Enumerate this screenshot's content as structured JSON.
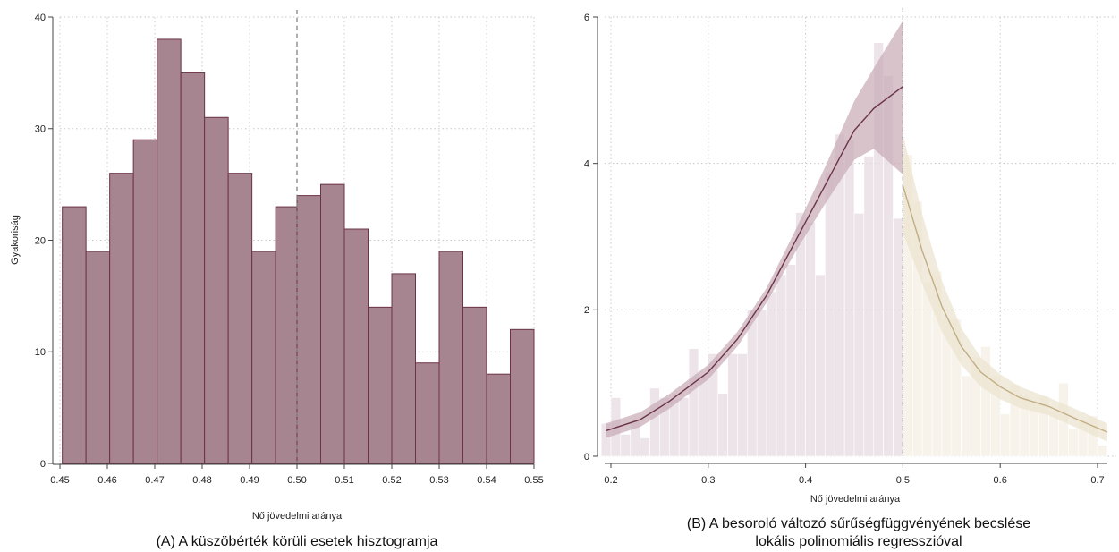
{
  "colors": {
    "left_bar_fill": "#a68490",
    "left_bar_stroke": "#6b3347",
    "left_line": "#6b3347",
    "left_band": "#c7a9b5",
    "left_bin_fill": "#e7dbe1",
    "right_line": "#c2ad85",
    "right_band": "#ebe2cf",
    "right_bin_fill": "#f4efe4",
    "grid": "#c8c8c8",
    "axis": "#444444",
    "cutoff_line": "#7a7a7a"
  },
  "panel_a": {
    "caption": "(A) A küszöbérték körüli esetek hisztogramja",
    "xlabel": "Nő jövedelmi aránya",
    "ylabel": "Gyakoriság",
    "xticks": [
      "0.45",
      "0.46",
      "0.47",
      "0.48",
      "0.49",
      "0.50",
      "0.51",
      "0.52",
      "0.53",
      "0.54",
      "0.55"
    ],
    "yticks": [
      "0",
      "10",
      "20",
      "30",
      "40"
    ]
  },
  "panel_b": {
    "caption_line1": "(B) A besoroló változó sűrűségfüggvényének becslése",
    "caption_line2": "lokális polinomiális regresszióval",
    "xlabel": "Nő jövedelmi aránya",
    "xticks": [
      "0.2",
      "0.3",
      "0.4",
      "0.5",
      "0.6",
      "0.7"
    ],
    "yticks": [
      "0",
      "2",
      "4",
      "6"
    ]
  },
  "chart_data": [
    {
      "type": "bar",
      "xlim": [
        0.45,
        0.55
      ],
      "ylim": [
        0,
        40
      ],
      "bin_width": 0.005,
      "cutoff": 0.5,
      "grid": true,
      "bins_start": [
        0.4505,
        0.4555,
        0.4605,
        0.4655,
        0.4705,
        0.4755,
        0.4805,
        0.4855,
        0.4905,
        0.4955,
        0.5,
        0.505,
        0.51,
        0.515,
        0.52,
        0.525,
        0.53,
        0.535,
        0.54,
        0.545
      ],
      "values": [
        23,
        19,
        26,
        29,
        38,
        35,
        31,
        26,
        19,
        23,
        24,
        25,
        21,
        14,
        17,
        9,
        19,
        14,
        8,
        12
      ]
    },
    {
      "type": "line",
      "xlim": [
        0.2,
        0.7
      ],
      "ylim": [
        0,
        6
      ],
      "cutoff": 0.5,
      "grid": true,
      "histogram_left": {
        "bin_width": 0.01,
        "bins_start": [
          0.19,
          0.2,
          0.21,
          0.22,
          0.23,
          0.24,
          0.25,
          0.26,
          0.27,
          0.28,
          0.29,
          0.3,
          0.31,
          0.32,
          0.33,
          0.34,
          0.35,
          0.36,
          0.37,
          0.38,
          0.39,
          0.4,
          0.41,
          0.42,
          0.43,
          0.44,
          0.45,
          0.46,
          0.47,
          0.48,
          0.49
        ],
        "values": [
          0.45,
          0.8,
          0.3,
          0.48,
          0.25,
          0.93,
          0.8,
          0.78,
          0.8,
          1.47,
          1.1,
          1.4,
          0.86,
          1.4,
          1.4,
          2.0,
          2.0,
          2.25,
          2.48,
          2.62,
          3.33,
          3.2,
          2.48,
          3.88,
          4.4,
          4.32,
          3.32,
          4.1,
          5.65,
          5.2,
          3.25
        ]
      },
      "histogram_right": {
        "bin_width": 0.01,
        "bins_start": [
          0.5,
          0.51,
          0.52,
          0.53,
          0.54,
          0.55,
          0.56,
          0.57,
          0.58,
          0.59,
          0.6,
          0.61,
          0.62,
          0.63,
          0.64,
          0.65,
          0.66,
          0.67,
          0.68,
          0.69,
          0.7
        ],
        "values": [
          4.12,
          3.48,
          2.38,
          2.53,
          1.87,
          1.87,
          1.1,
          1.35,
          1.5,
          1.1,
          0.58,
          0.98,
          0.85,
          0.76,
          0.82,
          0.62,
          1.0,
          0.37,
          0.5,
          0.55,
          0.15
        ]
      },
      "series": [
        {
          "x": [
            0.195,
            0.23,
            0.26,
            0.3,
            0.33,
            0.36,
            0.39,
            0.42,
            0.45,
            0.47,
            0.5
          ],
          "y": [
            0.35,
            0.5,
            0.75,
            1.15,
            1.6,
            2.2,
            2.95,
            3.7,
            4.45,
            4.75,
            5.05
          ],
          "ci_low": [
            0.25,
            0.4,
            0.65,
            1.05,
            1.5,
            2.1,
            2.8,
            3.45,
            4.05,
            4.2,
            3.85
          ],
          "ci_high": [
            0.45,
            0.6,
            0.85,
            1.25,
            1.7,
            2.3,
            3.1,
            3.95,
            4.85,
            5.3,
            5.95
          ]
        },
        {
          "x": [
            0.5,
            0.52,
            0.54,
            0.56,
            0.58,
            0.6,
            0.62,
            0.65,
            0.68,
            0.71
          ],
          "y": [
            3.7,
            2.8,
            2.05,
            1.5,
            1.15,
            0.95,
            0.8,
            0.68,
            0.5,
            0.33
          ],
          "ci_low": [
            3.05,
            2.35,
            1.7,
            1.25,
            0.95,
            0.78,
            0.66,
            0.56,
            0.38,
            0.2
          ],
          "ci_high": [
            4.4,
            3.3,
            2.4,
            1.75,
            1.35,
            1.12,
            0.95,
            0.8,
            0.63,
            0.45
          ]
        }
      ]
    }
  ]
}
